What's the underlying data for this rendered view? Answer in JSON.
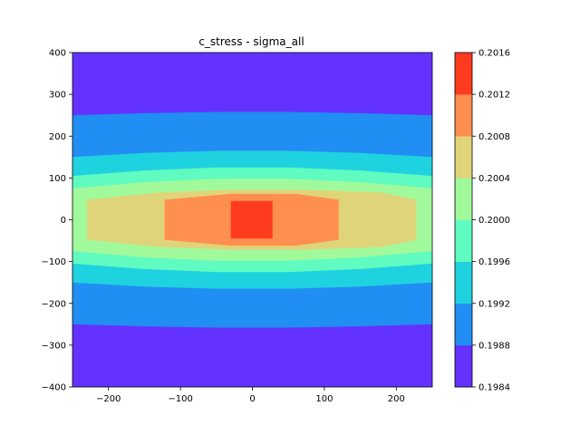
{
  "chart_data": {
    "type": "contourf",
    "title": "c_stress - sigma_all",
    "xlim": [
      -250,
      250
    ],
    "ylim": [
      -400,
      400
    ],
    "x_ticks": [
      -200,
      -100,
      0,
      100,
      200
    ],
    "y_ticks": [
      -400,
      -300,
      -200,
      -100,
      0,
      100,
      200,
      300,
      400
    ],
    "x_tick_labels": [
      "−200",
      "−100",
      "0",
      "100",
      "200"
    ],
    "y_tick_labels": [
      "−400",
      "−300",
      "−200",
      "−100",
      "0",
      "100",
      "200",
      "300",
      "400"
    ],
    "colorbar": {
      "levels": [
        0.1984,
        0.1988,
        0.1992,
        0.1996,
        0.2,
        0.2004,
        0.2008,
        0.2012,
        0.2016
      ],
      "tick_labels": [
        "0.1984",
        "0.1988",
        "0.1992",
        "0.1996",
        "0.2000",
        "0.2004",
        "0.2008",
        "0.2012",
        "0.2016"
      ],
      "colors": [
        "#6432fe",
        "#208ef2",
        "#1fd2e0",
        "#60fbc0",
        "#a0fa9b",
        "#e0d47b",
        "#ff8f4f",
        "#ff3b1f"
      ]
    },
    "bands": [
      {
        "level_index": 1,
        "polygon": [
          [
            -250,
            250
          ],
          [
            -150,
            255
          ],
          [
            -50,
            258
          ],
          [
            50,
            258
          ],
          [
            150,
            255
          ],
          [
            250,
            250
          ],
          [
            250,
            -250
          ],
          [
            150,
            -255
          ],
          [
            50,
            -258
          ],
          [
            -50,
            -258
          ],
          [
            -150,
            -255
          ],
          [
            -250,
            -250
          ]
        ]
      },
      {
        "level_index": 2,
        "polygon": [
          [
            -250,
            150
          ],
          [
            -150,
            160
          ],
          [
            -50,
            165
          ],
          [
            50,
            165
          ],
          [
            150,
            160
          ],
          [
            250,
            150
          ],
          [
            250,
            -150
          ],
          [
            150,
            -160
          ],
          [
            50,
            -165
          ],
          [
            -50,
            -165
          ],
          [
            -150,
            -160
          ],
          [
            -250,
            -150
          ]
        ]
      },
      {
        "level_index": 3,
        "polygon": [
          [
            -250,
            105
          ],
          [
            -150,
            118
          ],
          [
            -50,
            125
          ],
          [
            50,
            125
          ],
          [
            150,
            118
          ],
          [
            250,
            105
          ],
          [
            250,
            -105
          ],
          [
            150,
            -118
          ],
          [
            50,
            -125
          ],
          [
            -50,
            -125
          ],
          [
            -150,
            -118
          ],
          [
            -250,
            -105
          ]
        ]
      },
      {
        "level_index": 4,
        "polygon": [
          [
            -250,
            75
          ],
          [
            -150,
            90
          ],
          [
            -50,
            98
          ],
          [
            50,
            98
          ],
          [
            150,
            90
          ],
          [
            250,
            75
          ],
          [
            250,
            -75
          ],
          [
            150,
            -90
          ],
          [
            50,
            -98
          ],
          [
            -50,
            -98
          ],
          [
            -150,
            -90
          ],
          [
            -250,
            -75
          ]
        ]
      },
      {
        "level_index": 5,
        "polygon": [
          [
            -230,
            48
          ],
          [
            -130,
            65
          ],
          [
            -30,
            72
          ],
          [
            70,
            72
          ],
          [
            180,
            65
          ],
          [
            228,
            48
          ],
          [
            228,
            -48
          ],
          [
            180,
            -65
          ],
          [
            70,
            -72
          ],
          [
            -30,
            -72
          ],
          [
            -130,
            -65
          ],
          [
            -230,
            -48
          ]
        ]
      },
      {
        "level_index": 6,
        "polygon": [
          [
            -122,
            48
          ],
          [
            -30,
            62
          ],
          [
            60,
            62
          ],
          [
            120,
            48
          ],
          [
            120,
            -48
          ],
          [
            60,
            -62
          ],
          [
            -30,
            -62
          ],
          [
            -122,
            -48
          ]
        ]
      },
      {
        "level_index": 7,
        "polygon": [
          [
            -30,
            45
          ],
          [
            28,
            45
          ],
          [
            28,
            -45
          ],
          [
            -30,
            -45
          ]
        ]
      }
    ]
  }
}
